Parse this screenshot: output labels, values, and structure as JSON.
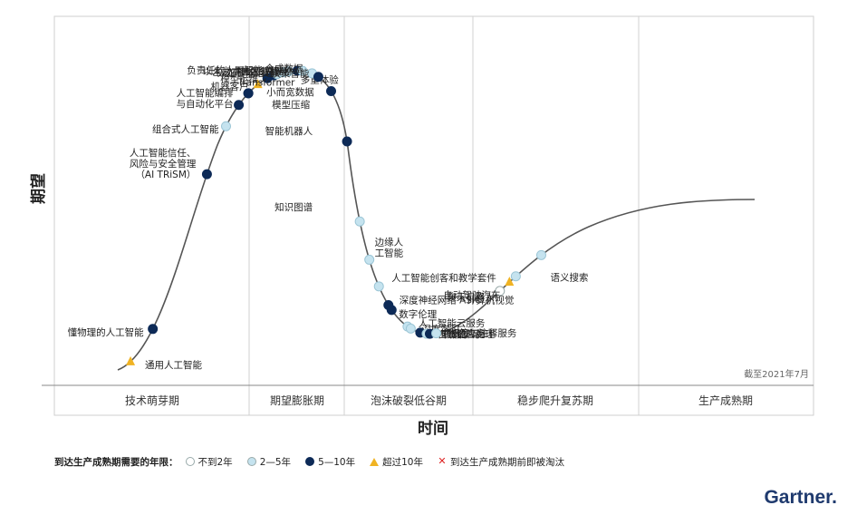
{
  "chart_data": {
    "type": "hype-cycle",
    "y_axis_label": "期望",
    "x_axis_label": "时间",
    "as_of": "截至2021年7月",
    "phases": [
      "技术萌芽期",
      "期望膨胀期",
      "泡沫破裂低谷期",
      "稳步爬升复苏期",
      "生产成熟期"
    ],
    "colors": {
      "lt2": "#ffffff",
      "y2to5": "#c5e3ef",
      "y5to10": "#0d2a57",
      "gt10": "#f0b323",
      "obsolete": "#dd2222",
      "curve": "#555555"
    },
    "technologies": [
      {
        "name": "通用人工智能",
        "marker": "gt10",
        "t": 0.02
      },
      {
        "name": "懂物理的人工智能",
        "marker": "y5to10",
        "t": 0.055
      },
      {
        "name": "人工智能信任、风险与安全管理（AI TRiSM）",
        "marker": "y5to10",
        "t": 0.14
      },
      {
        "name": "组合式人工智能",
        "marker": "y2to5",
        "t": 0.17
      },
      {
        "name": "人工智能编排与自动化平台",
        "marker": "y5to10",
        "t": 0.19
      },
      {
        "name": "小而宽数据",
        "marker": "y5to10",
        "t": 0.205
      },
      {
        "name": "模型压缩",
        "marker": "y5to10",
        "t": 0.205
      },
      {
        "name": "机器客户",
        "marker": "gt10",
        "t": 0.22
      },
      {
        "name": "模型运维",
        "marker": "y5to10",
        "t": 0.235
      },
      {
        "name": "负责任的人工智能",
        "marker": "y5to10",
        "t": 0.245
      },
      {
        "name": "多重体验",
        "marker": "y2to5",
        "t": 0.25
      },
      {
        "name": "人工智能治理",
        "marker": "y2to5",
        "t": 0.26
      },
      {
        "name": "生成式人工智能",
        "marker": "y2to5",
        "t": 0.268
      },
      {
        "name": "以人为本的人工智能",
        "marker": "y5to10",
        "t": 0.282
      },
      {
        "name": "神经形态硬件",
        "marker": "y2to5",
        "t": 0.29
      },
      {
        "name": "合成数据",
        "marker": "y2to5",
        "t": 0.305
      },
      {
        "name": "决策智能",
        "marker": "y5to10",
        "t": 0.315
      },
      {
        "name": "Transformer",
        "marker": "y5to10",
        "t": 0.335
      },
      {
        "name": "智能机器人",
        "marker": "y5to10",
        "t": 0.36
      },
      {
        "name": "知识图谱",
        "marker": "y2to5",
        "t": 0.38
      },
      {
        "name": "边缘人工智能",
        "marker": "y2to5",
        "t": 0.395
      },
      {
        "name": "人工智能创客和教学套件",
        "marker": "y2to5",
        "t": 0.41
      },
      {
        "name": "深度神经网络ASIC",
        "marker": "y5to10",
        "t": 0.425
      },
      {
        "name": "数字伦理",
        "marker": "y5to10",
        "t": 0.43
      },
      {
        "name": "人工智能云服务",
        "marker": "y2to5",
        "t": 0.455
      },
      {
        "name": "深度学习",
        "marker": "y2to5",
        "t": 0.46
      },
      {
        "name": "数据标签与注释服务",
        "marker": "y5to10",
        "t": 0.475
      },
      {
        "name": "自然语言处理",
        "marker": "y2to5",
        "t": 0.485
      },
      {
        "name": "机器学习",
        "marker": "y5to10",
        "t": 0.49
      },
      {
        "name": "智能应用",
        "marker": "y2to5",
        "t": 0.5
      },
      {
        "name": "聊天机器人",
        "marker": "lt2",
        "t": 0.6
      },
      {
        "name": "自动驾驶汽车",
        "marker": "gt10",
        "t": 0.615
      },
      {
        "name": "计算机视觉",
        "marker": "y2to5",
        "t": 0.625
      },
      {
        "name": "语义搜索",
        "marker": "y2to5",
        "t": 0.665
      }
    ]
  },
  "legend": {
    "title": "到达生产成熟期需要的年限：",
    "items": [
      {
        "key": "lt2",
        "label": "不到2年",
        "shape": "circle"
      },
      {
        "key": "y2to5",
        "label": "2—5年",
        "shape": "circle"
      },
      {
        "key": "y5to10",
        "label": "5—10年",
        "shape": "circle"
      },
      {
        "key": "gt10",
        "label": "超过10年",
        "shape": "triangle"
      },
      {
        "key": "obsolete",
        "label": "到达生产成熟期前即被淘汰",
        "shape": "cross"
      }
    ]
  },
  "brand": "Gartner."
}
